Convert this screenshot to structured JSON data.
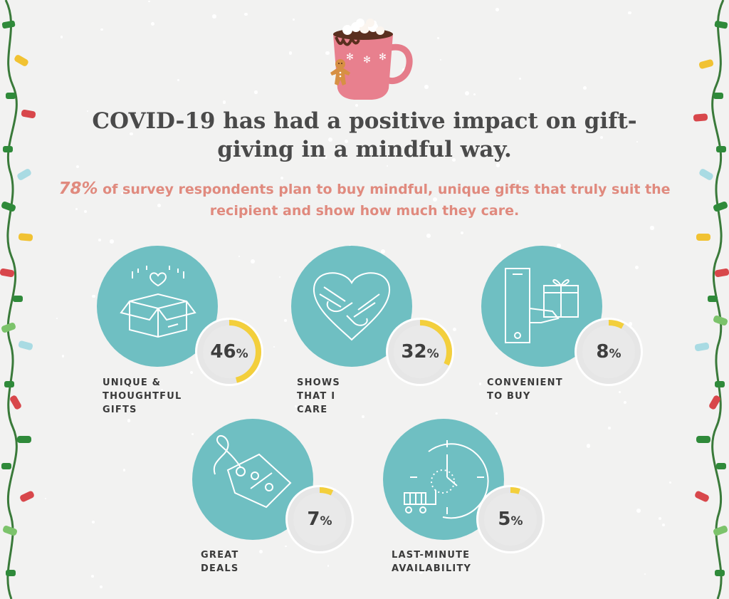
{
  "title": "COVID-19 has had a positive impact on gift-giving in a mindful way.",
  "subtitle": {
    "highlight": "78%",
    "text": " of survey respondents plan to buy mindful, unique gifts that truly suit the recipient and show how much they care."
  },
  "colors": {
    "background": "#f2f2f1",
    "circle": "#6fbfc2",
    "ring_track": "#e6e6e6",
    "ring_fill": "#f3cf3c",
    "title": "#4a4a4a",
    "subtitle": "#e08a7e",
    "light_wire": "#3a7a3a"
  },
  "chart_data": {
    "type": "bar",
    "categories": [
      "UNIQUE & THOUGHTFUL GIFTS",
      "SHOWS THAT I CARE",
      "CONVENIENT TO BUY",
      "GREAT DEALS",
      "LAST-MINUTE AVAILABILITY"
    ],
    "values": [
      46,
      32,
      8,
      7,
      5
    ],
    "unit": "%",
    "items": [
      {
        "label": "UNIQUE &\nTHOUGHTFUL\nGIFTS",
        "value": 46,
        "icon": "open-box-heart-icon"
      },
      {
        "label": "SHOWS\nTHAT I CARE",
        "value": 32,
        "icon": "heart-hug-icon"
      },
      {
        "label": "CONVENIENT\nTO BUY",
        "value": 8,
        "icon": "phone-gift-icon"
      },
      {
        "label": "GREAT DEALS",
        "value": 7,
        "icon": "price-tag-percent-icon"
      },
      {
        "label": "LAST-MINUTE\nAVAILABILITY",
        "value": 5,
        "icon": "clock-cart-icon"
      }
    ]
  }
}
